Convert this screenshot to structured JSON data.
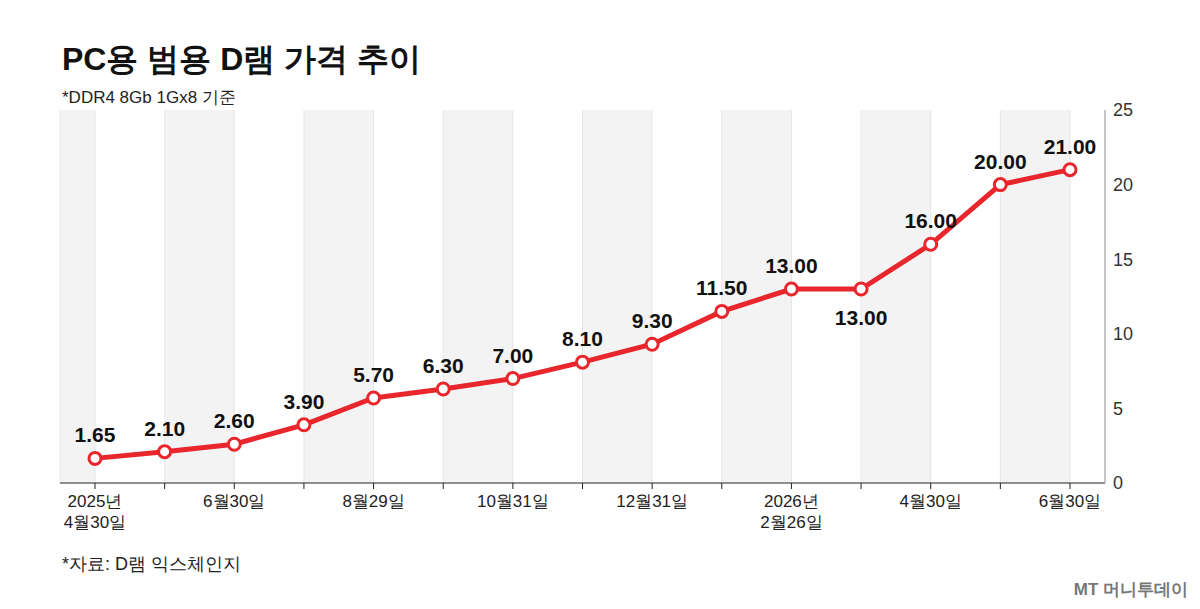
{
  "chart_data": {
    "type": "line",
    "title": "PC용 범용 D램 가격 추이",
    "subtitle": "*DDR4 8Gb 1Gx8 기준",
    "source": "*자료: D램 익스체인지",
    "credit": "MT 머니투데이",
    "categories": [
      "2025년 4월30일",
      null,
      "6월30일",
      null,
      "8월29일",
      null,
      "10월31일",
      null,
      "12월31일",
      null,
      "2026년 2월26일",
      null,
      "4월30일",
      null,
      "6월30일"
    ],
    "values": [
      1.65,
      2.1,
      2.6,
      3.9,
      5.7,
      6.3,
      7.0,
      8.1,
      9.3,
      11.5,
      13.0,
      13.0,
      16.0,
      20.0,
      21.0
    ],
    "value_labels": [
      "1.65",
      "2.10",
      "2.60",
      "3.90",
      "5.70",
      "6.30",
      "7.00",
      "8.10",
      "9.30",
      "11.50",
      "13.00",
      "13.00",
      "16.00",
      "20.00",
      "21.00"
    ],
    "color": "#e8262c",
    "marker": "circle",
    "ylim": [
      0,
      25
    ],
    "yticks": [
      0,
      5,
      10,
      15,
      20,
      25
    ],
    "grid": true,
    "data_labels": true
  }
}
